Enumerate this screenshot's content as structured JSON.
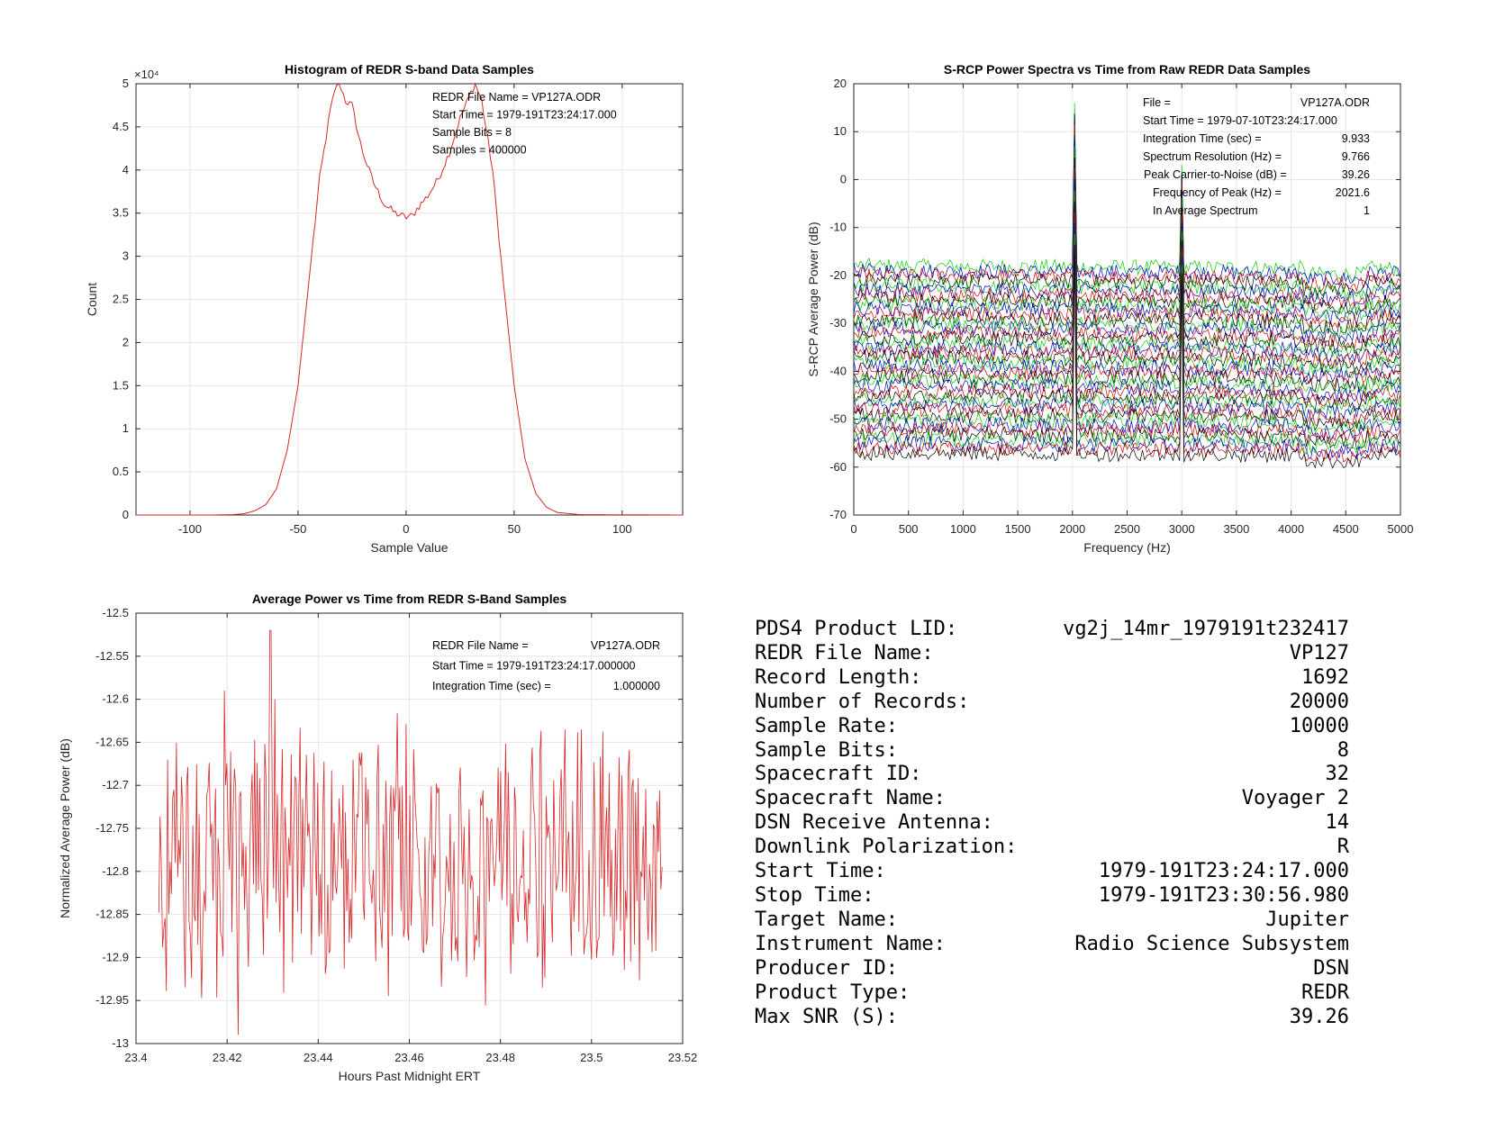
{
  "charts": [
    {
      "type": "line",
      "title": "Histogram of REDR S-band Data Samples",
      "xlabel": "Sample Value",
      "ylabel": "Count",
      "xlim": [
        -125,
        128
      ],
      "ylim": [
        0,
        50000
      ],
      "xticks": [
        -100,
        -50,
        0,
        50,
        100
      ],
      "xtick_labels": [
        "-100",
        "-50",
        "0",
        "50",
        "100"
      ],
      "yticks": [
        0,
        5000,
        10000,
        15000,
        20000,
        25000,
        30000,
        35000,
        40000,
        45000,
        50000
      ],
      "ytick_labels": [
        "0",
        "0.5",
        "1",
        "1.5",
        "2",
        "2.5",
        "3",
        "3.5",
        "4",
        "4.5",
        "5"
      ],
      "exponent_label": "×10⁴",
      "grid": true,
      "color": "#d62728",
      "annotations": [
        "REDR File Name = VP127A.ODR",
        "Start Time = 1979-191T23:24:17.000",
        "Sample Bits = 8",
        "Samples = 400000"
      ],
      "x": [
        -128,
        -90,
        -80,
        -75,
        -70,
        -65,
        -60,
        -55,
        -50,
        -45,
        -40,
        -35,
        -32,
        -30,
        -28,
        -25,
        -22,
        -20,
        -15,
        -10,
        -5,
        0,
        3,
        5,
        10,
        15,
        20,
        25,
        30,
        32,
        35,
        40,
        45,
        50,
        55,
        60,
        65,
        70,
        80,
        128
      ],
      "y": [
        0,
        0,
        50,
        150,
        500,
        1200,
        3000,
        7500,
        15000,
        27000,
        39000,
        47000,
        50000,
        49500,
        48000,
        47500,
        44000,
        42000,
        38500,
        36000,
        35000,
        34500,
        34700,
        35500,
        37000,
        39000,
        42000,
        46000,
        49000,
        50000,
        48000,
        40000,
        27000,
        15000,
        6500,
        2500,
        900,
        300,
        50,
        0
      ]
    },
    {
      "type": "line",
      "title": "S-RCP Power Spectra vs Time from Raw REDR Data Samples",
      "xlabel": "Frequency (Hz)",
      "ylabel": "S-RCP Average Power (dB)",
      "xlim": [
        0,
        5000
      ],
      "ylim": [
        -70,
        20
      ],
      "xticks": [
        0,
        500,
        1000,
        1500,
        2000,
        2500,
        3000,
        3500,
        4000,
        4500,
        5000
      ],
      "xtick_labels": [
        "0",
        "500",
        "1000",
        "1500",
        "2000",
        "2500",
        "3000",
        "3500",
        "4000",
        "4500",
        "5000"
      ],
      "yticks": [
        -70,
        -60,
        -50,
        -40,
        -30,
        -20,
        -10,
        0,
        10,
        20
      ],
      "ytick_labels": [
        "-70",
        "-60",
        "-50",
        "-40",
        "-30",
        "-20",
        "-10",
        "0",
        "10",
        "20"
      ],
      "grid": true,
      "series_colors": [
        "#00cc00",
        "#0000cc",
        "#cc0000",
        "#000000"
      ],
      "baseline_top": -18,
      "baseline_bottom": -57,
      "num_traces": 40,
      "peaks": [
        {
          "x": 2021.6,
          "y": 16
        },
        {
          "x": 3000,
          "y": 3
        }
      ],
      "annotations": [
        {
          "label": "File =",
          "value": "VP127A.ODR"
        },
        {
          "label": "Start Time = 1979-07-10T23:24:17.000",
          "value": ""
        },
        {
          "label": "Integration Time (sec) =",
          "value": "9.933"
        },
        {
          "label": "Spectrum Resolution (Hz) =",
          "value": "9.766"
        },
        {
          "label": "Peak Carrier-to-Noise (dB) =",
          "value": "39.26"
        },
        {
          "label": "Frequency of Peak (Hz) =",
          "value": "2021.6"
        },
        {
          "label": "In Average Spectrum",
          "value": "1"
        }
      ]
    },
    {
      "type": "line",
      "title": "Average Power vs Time from REDR S-Band Samples",
      "xlabel": "Hours Past Midnight ERT",
      "ylabel": "Normalized Average Power (dB)",
      "xlim": [
        23.4,
        23.52
      ],
      "ylim": [
        -13,
        -12.5
      ],
      "xticks": [
        23.4,
        23.42,
        23.44,
        23.46,
        23.48,
        23.5,
        23.52
      ],
      "xtick_labels": [
        "23.4",
        "23.42",
        "23.44",
        "23.46",
        "23.48",
        "23.5",
        "23.52"
      ],
      "yticks": [
        -13,
        -12.95,
        -12.9,
        -12.85,
        -12.8,
        -12.75,
        -12.7,
        -12.65,
        -12.6,
        -12.55,
        -12.5
      ],
      "ytick_labels": [
        "-13",
        "-12.95",
        "-12.9",
        "-12.85",
        "-12.8",
        "-12.75",
        "-12.7",
        "-12.65",
        "-12.6",
        "-12.55",
        "-12.5"
      ],
      "grid": true,
      "color": "#d62728",
      "x_start": 23.405,
      "x_end": 23.5155,
      "num_points": 400,
      "mean": -12.79,
      "spikes": [
        {
          "x": 23.4295,
          "y": -12.52
        },
        {
          "x": 23.4195,
          "y": -12.59
        },
        {
          "x": 23.4305,
          "y": -12.6
        }
      ],
      "annotations": [
        {
          "label": "REDR File Name =",
          "value": "VP127A.ODR"
        },
        {
          "label": "Start Time = 1979-191T23:24:17.000000",
          "value": ""
        },
        {
          "label": "Integration Time (sec) =",
          "value": "1.000000"
        }
      ]
    }
  ],
  "info_table": [
    {
      "label": "PDS4 Product LID:",
      "value": "vg2j_14mr_1979191t232417"
    },
    {
      "label": "REDR File Name:",
      "value": "VP127"
    },
    {
      "label": "Record Length:",
      "value": "1692"
    },
    {
      "label": "Number of Records:",
      "value": "20000"
    },
    {
      "label": "Sample Rate:",
      "value": "10000"
    },
    {
      "label": "Sample Bits:",
      "value": "8"
    },
    {
      "label": "Spacecraft ID:",
      "value": "32"
    },
    {
      "label": "Spacecraft Name:",
      "value": "Voyager 2"
    },
    {
      "label": "DSN Receive Antenna:",
      "value": "14"
    },
    {
      "label": "Downlink Polarization:",
      "value": "R"
    },
    {
      "label": "Start Time:",
      "value": "1979-191T23:24:17.000"
    },
    {
      "label": "Stop Time:",
      "value": "1979-191T23:30:56.980"
    },
    {
      "label": "Target Name:",
      "value": "Jupiter"
    },
    {
      "label": "Instrument Name:",
      "value": "Radio Science Subsystem"
    },
    {
      "label": "Producer ID:",
      "value": "DSN"
    },
    {
      "label": "Product Type:",
      "value": "REDR"
    },
    {
      "label": "Max SNR (S):",
      "value": "39.26"
    }
  ]
}
